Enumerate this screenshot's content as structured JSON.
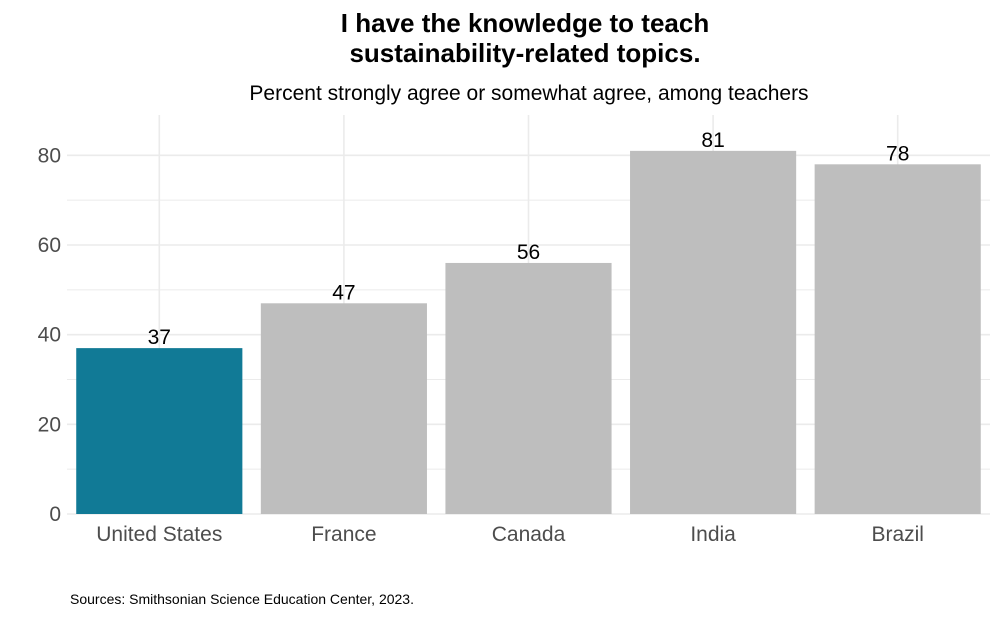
{
  "chart_data": {
    "type": "bar",
    "title": "I have the knowledge to teach sustainability-related topics.",
    "title_lines": [
      "I have the knowledge to teach",
      "sustainability-related topics."
    ],
    "subtitle": "Percent strongly agree or somewhat agree, among teachers",
    "categories": [
      "United States",
      "France",
      "Canada",
      "India",
      "Brazil"
    ],
    "values": [
      37,
      47,
      56,
      81,
      78
    ],
    "xlabel": "",
    "ylabel": "",
    "ylim": [
      0,
      89
    ],
    "yticks": [
      0,
      20,
      40,
      60,
      80
    ],
    "grid": true,
    "legend": "none",
    "colors": {
      "highlight": "#117a96",
      "default": "#bebebe",
      "grid": "#ebebeb",
      "tick_text": "#4d4d4d"
    },
    "highlight_category": "United States"
  },
  "source": "Sources: Smithsonian Science Education Center, 2023."
}
